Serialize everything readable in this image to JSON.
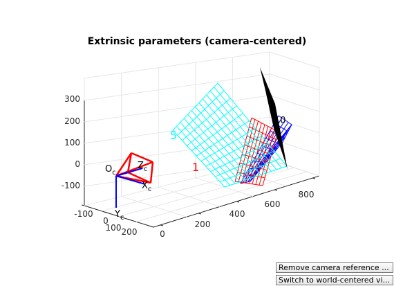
{
  "figure": {
    "title": "Extrinsic parameters (camera-centered)"
  },
  "buttons": {
    "remove_camera_reference": "Remove camera reference ...",
    "switch_view": "Switch to world-centered vi..."
  },
  "axes": {
    "z_ticks": [
      "300",
      "200",
      "100",
      "0",
      "-100"
    ],
    "x_ticks": [
      "-100",
      "0",
      "100",
      "200"
    ],
    "depth_ticks": [
      "0",
      "200",
      "400",
      "600",
      "800"
    ]
  },
  "camera": {
    "origin_label": "O",
    "origin_subscript": "c",
    "x_label": "X",
    "x_subscript": "c",
    "y_label": "Y",
    "y_subscript": "c",
    "z_label": "Z",
    "z_subscript": "c"
  },
  "planes": {
    "cyan_label": "5",
    "red_label": "1",
    "far_label": "10"
  },
  "colors": {
    "cyan_grid": "#00ffff",
    "red_grid": "#ff0000",
    "blue_grid": "#0000ff",
    "black_plane": "#000000",
    "axis_grid": "#e6e6e6",
    "camera_frame": "#ff0000",
    "camera_axes": "#0000ff"
  }
}
